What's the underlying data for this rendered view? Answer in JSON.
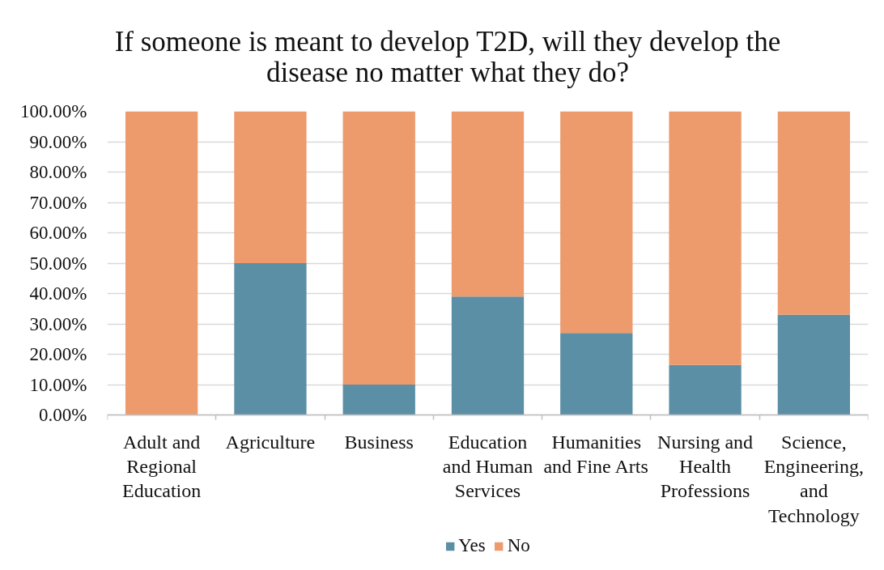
{
  "chart_data": {
    "type": "bar",
    "stacked": true,
    "title": "If someone is meant to develop T2D, will they develop the disease no matter what they do?",
    "categories": [
      "Adult and Regional Education",
      "Agriculture",
      "Business",
      "Education and Human Services",
      "Humanities and Fine Arts",
      "Nursing and Health Professions",
      "Science, Engineering, and Technology"
    ],
    "series": [
      {
        "name": "Yes",
        "color": "#5b8fa6",
        "values": [
          0,
          50,
          10,
          39,
          27,
          16.5,
          33
        ]
      },
      {
        "name": "No",
        "color": "#ed9a6c",
        "values": [
          100,
          50,
          90,
          61,
          73,
          83.5,
          67
        ]
      }
    ],
    "ylim": [
      0,
      100
    ],
    "yticks": [
      {
        "value": 0,
        "label": "0.00%"
      },
      {
        "value": 10,
        "label": "10.00%"
      },
      {
        "value": 20,
        "label": "20.00%"
      },
      {
        "value": 30,
        "label": "30.00%"
      },
      {
        "value": 40,
        "label": "40.00%"
      },
      {
        "value": 50,
        "label": "50.00%"
      },
      {
        "value": 60,
        "label": "60.00%"
      },
      {
        "value": 70,
        "label": "70.00%"
      },
      {
        "value": 80,
        "label": "80.00%"
      },
      {
        "value": 90,
        "label": "90.00%"
      },
      {
        "value": 100,
        "label": "100.00%"
      }
    ],
    "grid": "y",
    "legend": "bottom"
  }
}
